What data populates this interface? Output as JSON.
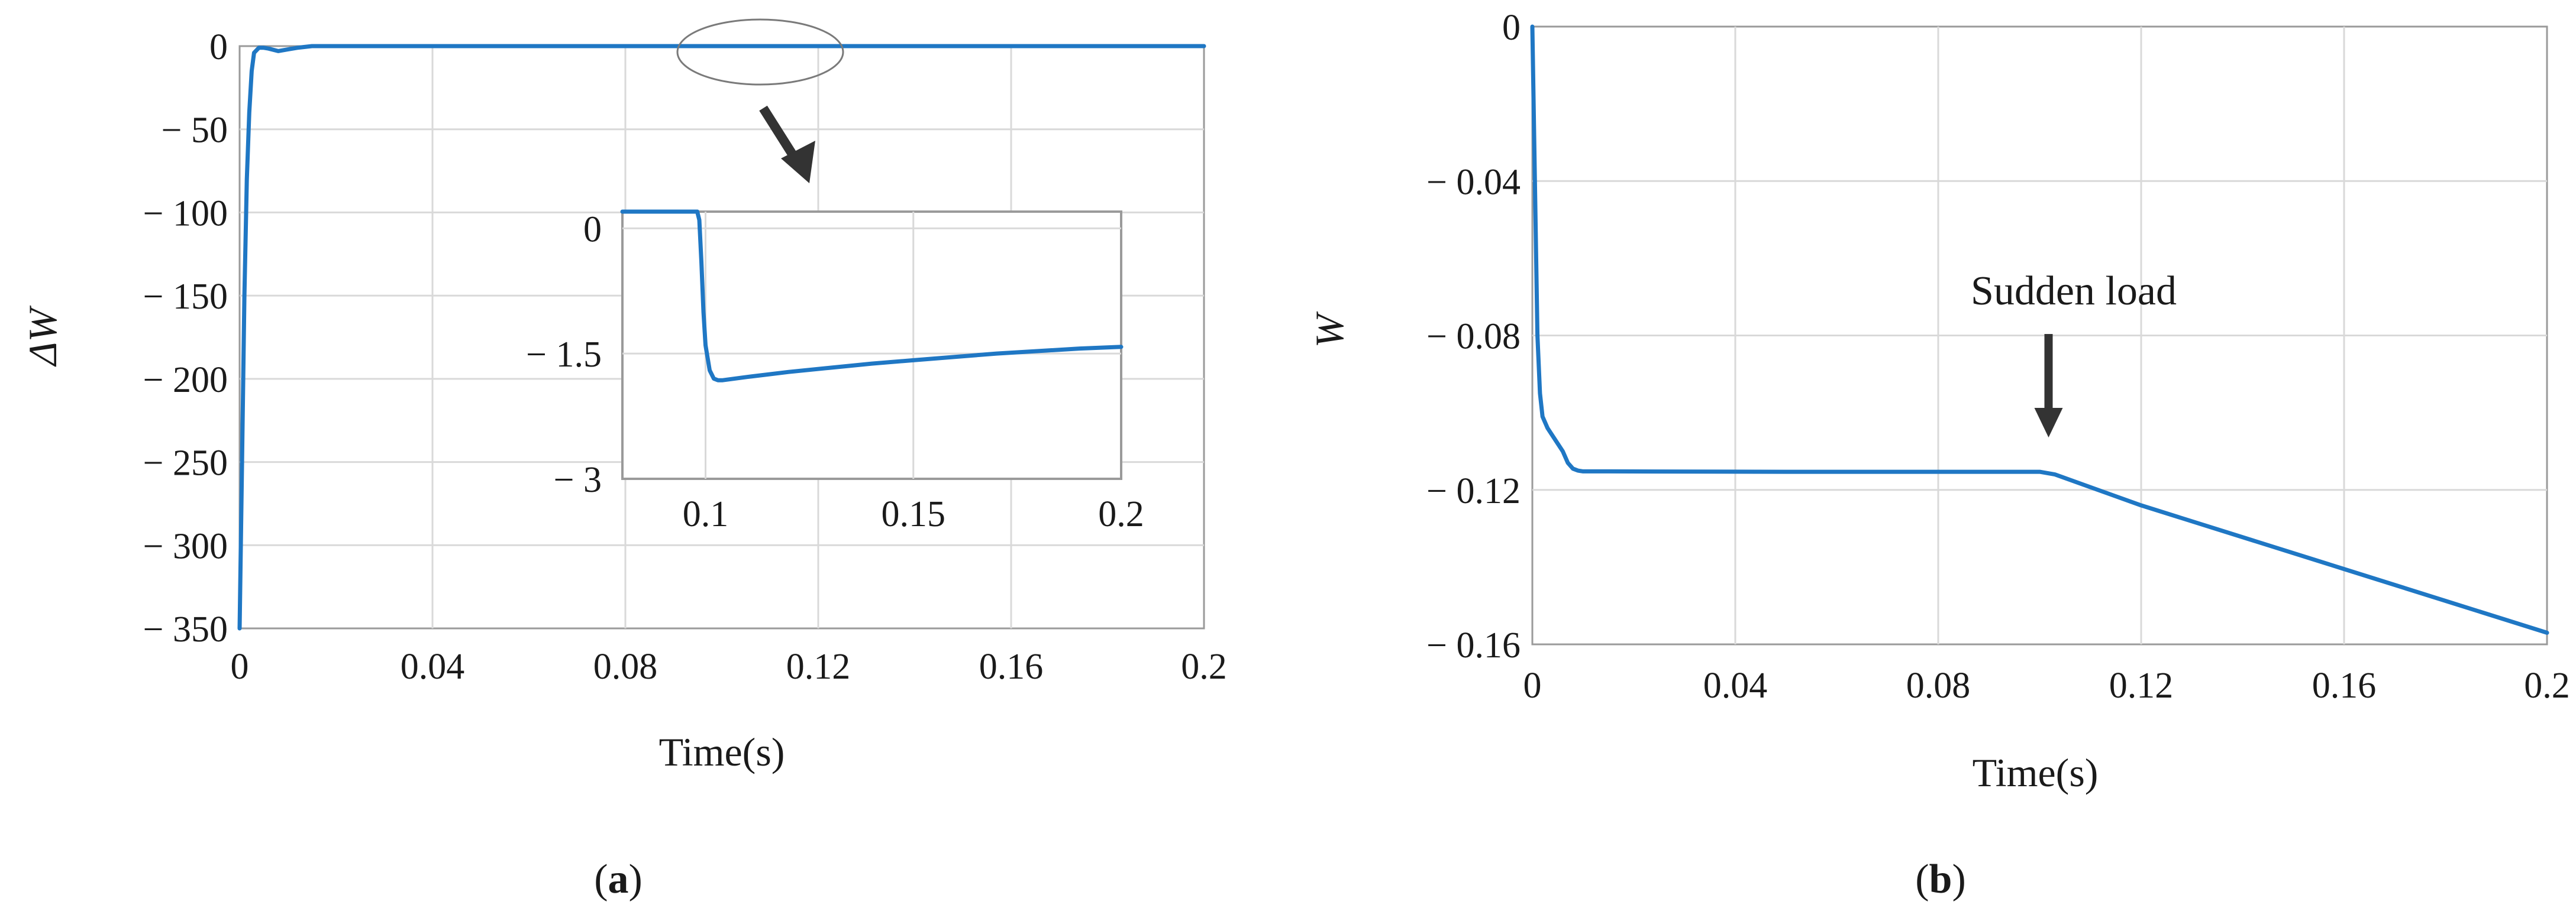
{
  "chart_data": [
    {
      "panel": "a",
      "panel_label": "a",
      "type": "line",
      "xlabel": "Time(s)",
      "ylabel": "ΔW",
      "xlim": [
        0,
        0.2
      ],
      "ylim": [
        -350,
        0
      ],
      "xticks": [
        0,
        0.04,
        0.08,
        0.12,
        0.16,
        0.2
      ],
      "xtick_labels": [
        "0",
        "0.04",
        "0.08",
        "0.12",
        "0.16",
        "0.2"
      ],
      "yticks": [
        0,
        -50,
        -100,
        -150,
        -200,
        -250,
        -300,
        -350
      ],
      "ytick_labels": [
        "0",
        "− 50",
        "− 100",
        "− 150",
        "− 200",
        "− 250",
        "− 300",
        "− 350"
      ],
      "grid": true,
      "series": [
        {
          "color": "#1f77c4",
          "x": [
            0,
            0.0005,
            0.001,
            0.0015,
            0.002,
            0.0025,
            0.003,
            0.004,
            0.005,
            0.006,
            0.008,
            0.01,
            0.012,
            0.015,
            0.02,
            0.05,
            0.1,
            0.2
          ],
          "y": [
            -350,
            -250,
            -150,
            -80,
            -40,
            -15,
            -4,
            -1,
            -1,
            -1.5,
            -3,
            -2,
            -1,
            0,
            0,
            0,
            0,
            0
          ]
        }
      ],
      "inset": {
        "type": "line",
        "xlim": [
          0.08,
          0.2
        ],
        "ylim": [
          -3,
          0.2
        ],
        "xticks": [
          0.1,
          0.15,
          0.2
        ],
        "xtick_labels": [
          "0.1",
          "0.15",
          "0.2"
        ],
        "yticks": [
          0,
          -1.5,
          -3
        ],
        "ytick_labels": [
          "0",
          "− 1.5",
          "− 3"
        ],
        "grid": true,
        "series": [
          {
            "color": "#1f77c4",
            "x": [
              0.08,
              0.098,
              0.0985,
              0.099,
              0.0995,
              0.1,
              0.101,
              0.102,
              0.103,
              0.104,
              0.11,
              0.12,
              0.13,
              0.14,
              0.15,
              0.16,
              0.17,
              0.18,
              0.19,
              0.2
            ],
            "y": [
              0.2,
              0.2,
              0.1,
              -0.4,
              -1.0,
              -1.4,
              -1.7,
              -1.8,
              -1.82,
              -1.82,
              -1.78,
              -1.72,
              -1.67,
              -1.62,
              -1.58,
              -1.54,
              -1.5,
              -1.47,
              -1.44,
              -1.42
            ]
          }
        ]
      }
    },
    {
      "panel": "b",
      "panel_label": "b",
      "type": "line",
      "xlabel": "Time(s)",
      "ylabel": "W",
      "xlim": [
        0,
        0.2
      ],
      "ylim": [
        -0.16,
        0
      ],
      "xticks": [
        0,
        0.04,
        0.08,
        0.12,
        0.16,
        0.2
      ],
      "xtick_labels": [
        "0",
        "0.04",
        "0.08",
        "0.12",
        "0.16",
        "0.2"
      ],
      "yticks": [
        0,
        -0.04,
        -0.08,
        -0.12,
        -0.16
      ],
      "ytick_labels": [
        "0",
        "− 0.04",
        "− 0.08",
        "− 0.12",
        "− 0.16"
      ],
      "grid": true,
      "annotation": "Sudden load",
      "annotation_x": 0.1,
      "series": [
        {
          "color": "#1f77c4",
          "x": [
            0,
            0.0005,
            0.001,
            0.0015,
            0.002,
            0.003,
            0.004,
            0.005,
            0.006,
            0.007,
            0.008,
            0.009,
            0.01,
            0.015,
            0.05,
            0.1,
            0.103,
            0.12,
            0.16,
            0.2
          ],
          "y": [
            0,
            -0.04,
            -0.08,
            -0.095,
            -0.101,
            -0.104,
            -0.106,
            -0.108,
            -0.11,
            -0.113,
            -0.1145,
            -0.115,
            -0.1152,
            -0.1152,
            -0.1153,
            -0.1153,
            -0.116,
            -0.124,
            -0.1405,
            -0.157
          ]
        }
      ]
    }
  ]
}
